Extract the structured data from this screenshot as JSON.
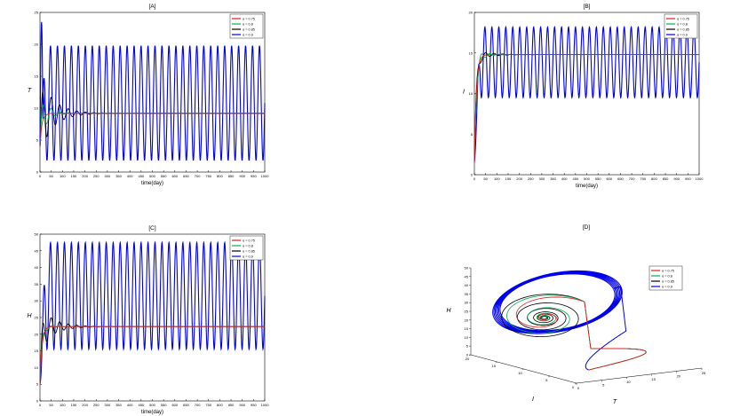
{
  "chart_data": [
    {
      "type": "line",
      "panel_label": "[A]",
      "xlabel": "time(day)",
      "ylabel": "T",
      "xlim": [
        0,
        1000
      ],
      "ylim": [
        0,
        25
      ],
      "xticks": [
        0,
        50,
        100,
        150,
        200,
        250,
        300,
        350,
        400,
        450,
        500,
        550,
        600,
        650,
        700,
        750,
        800,
        850,
        900,
        950,
        1000
      ],
      "yticks": [
        0,
        5,
        10,
        15,
        20,
        25
      ],
      "legend": [
        "α = 0.75",
        "α = 0.8",
        "α = 0.85",
        "α = 0.9"
      ],
      "legend_position": "top-right",
      "series": [
        {
          "name": "α = 0.75",
          "color": "#e31a1c",
          "equilibrium": 9.2,
          "behavior": "damped",
          "initial": 4,
          "peak": 9.5,
          "decay_days": 60
        },
        {
          "name": "α = 0.8",
          "color": "#00b050",
          "equilibrium": 9.2,
          "behavior": "damped",
          "initial": 4,
          "peak": 13,
          "decay_days": 110
        },
        {
          "name": "α = 0.85",
          "color": "#000000",
          "equilibrium": 9.2,
          "behavior": "damped",
          "initial": 4,
          "peak": 15,
          "decay_days": 210
        },
        {
          "name": "α = 0.9",
          "color": "#0000ee",
          "equilibrium": 9.2,
          "behavior": "limit_cycle",
          "initial": 4,
          "peak": 23.5,
          "min": 1.8,
          "max": 19.8,
          "period_days": 31
        }
      ]
    },
    {
      "type": "line",
      "panel_label": "[B]",
      "xlabel": "time(day)",
      "ylabel": "I",
      "xlim": [
        0,
        1000
      ],
      "ylim": [
        0,
        20
      ],
      "xticks": [
        0,
        50,
        100,
        150,
        200,
        250,
        300,
        350,
        400,
        450,
        500,
        550,
        600,
        650,
        700,
        750,
        800,
        850,
        900,
        950,
        1000
      ],
      "yticks": [
        0,
        5,
        10,
        15,
        20
      ],
      "legend": [
        "α = 0.75",
        "α = 0.8",
        "α = 0.85",
        "α = 0.9"
      ],
      "legend_position": "top-right",
      "series": [
        {
          "name": "α = 0.75",
          "color": "#e31a1c",
          "equilibrium": 14.8,
          "behavior": "rise",
          "initial": 1.5
        },
        {
          "name": "α = 0.8",
          "color": "#00b050",
          "equilibrium": 14.8,
          "behavior": "rise",
          "initial": 1.5,
          "peak": 13.5,
          "decay_days": 110
        },
        {
          "name": "α = 0.85",
          "color": "#000000",
          "equilibrium": 14.8,
          "behavior": "rise",
          "initial": 1.5,
          "peak": 15.5,
          "decay_days": 200
        },
        {
          "name": "α = 0.9",
          "color": "#0000ee",
          "equilibrium": 14.8,
          "behavior": "limit_cycle",
          "initial": 1.5,
          "min": 9.5,
          "max": 18.2,
          "period_days": 31
        }
      ]
    },
    {
      "type": "line",
      "panel_label": "[C]",
      "xlabel": "time(day)",
      "ylabel": "H",
      "xlim": [
        0,
        1000
      ],
      "ylim": [
        0,
        50
      ],
      "xticks": [
        0,
        50,
        100,
        150,
        200,
        250,
        300,
        350,
        400,
        450,
        500,
        550,
        600,
        650,
        700,
        750,
        800,
        850,
        900,
        950,
        1000
      ],
      "yticks": [
        0,
        5,
        10,
        15,
        20,
        25,
        30,
        35,
        40,
        45,
        50
      ],
      "legend": [
        "α = 0.75",
        "α = 0.8",
        "α = 0.85",
        "α = 0.9"
      ],
      "legend_position": "top-right",
      "series": [
        {
          "name": "α = 0.75",
          "color": "#e31a1c",
          "equilibrium": 22.3,
          "behavior": "rise",
          "initial": 5
        },
        {
          "name": "α = 0.8",
          "color": "#00b050",
          "equilibrium": 22.3,
          "behavior": "rise",
          "initial": 5,
          "peak": 24,
          "decay_days": 110
        },
        {
          "name": "α = 0.85",
          "color": "#000000",
          "equilibrium": 22.3,
          "behavior": "rise",
          "initial": 5,
          "peak": 28.5,
          "decay_days": 210
        },
        {
          "name": "α = 0.9",
          "color": "#0000ee",
          "equilibrium": 22.3,
          "behavior": "limit_cycle",
          "initial": 5,
          "min": 15.5,
          "max": 47.5,
          "period_days": 31
        }
      ]
    },
    {
      "type": "line",
      "subtype": "3d_phase_portrait",
      "panel_label": "[D]",
      "xlabel": "T",
      "ylabel": "I",
      "zlabel": "H",
      "xlim": [
        0,
        25
      ],
      "ylim": [
        0,
        20
      ],
      "zlim": [
        0,
        50
      ],
      "xticks": [
        0,
        5,
        10,
        15,
        20,
        25
      ],
      "yticks": [
        0,
        5,
        10,
        15,
        20
      ],
      "zticks": [
        0,
        5,
        10,
        15,
        20,
        25,
        30,
        35,
        40,
        45,
        50
      ],
      "legend": [
        "α = 0.75",
        "α = 0.8",
        "α = 0.85",
        "α = 0.9"
      ],
      "legend_position": "top-right",
      "equilibrium": [
        9.2,
        14.8,
        22.3
      ],
      "start": [
        4,
        1.5,
        5
      ],
      "series": [
        {
          "name": "α = 0.75",
          "color": "#e31a1c",
          "behavior": "spiral_in",
          "turns": 2
        },
        {
          "name": "α = 0.8",
          "color": "#00b050",
          "behavior": "spiral_in",
          "turns": 4
        },
        {
          "name": "α = 0.85",
          "color": "#000000",
          "behavior": "spiral_in",
          "turns": 7
        },
        {
          "name": "α = 0.9",
          "color": "#0000ee",
          "behavior": "limit_cycle",
          "cycle_T": [
            1.8,
            19.8
          ],
          "cycle_I": [
            9.5,
            18.2
          ],
          "cycle_H": [
            15.5,
            47.5
          ]
        }
      ]
    }
  ]
}
